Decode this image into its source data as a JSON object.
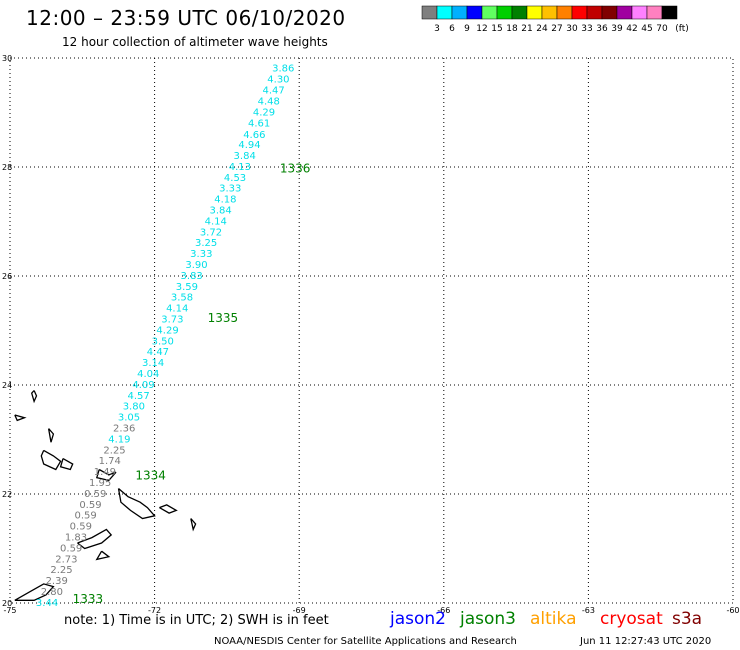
{
  "title": "12:00 – 23:59 UTC 06/10/2020",
  "subtitle": "12 hour collection of altimeter wave heights",
  "colorbar": {
    "labels": [
      "3",
      "6",
      "9",
      "12",
      "15",
      "18",
      "21",
      "24",
      "27",
      "30",
      "33",
      "36",
      "39",
      "42",
      "45",
      "70"
    ],
    "unit": "(ft)",
    "colors": [
      "#7f7f7f",
      "#00ffff",
      "#00b0ff",
      "#0000ff",
      "#60ff60",
      "#00d000",
      "#008000",
      "#ffff00",
      "#ffc000",
      "#ff8000",
      "#ff0000",
      "#c00000",
      "#800000",
      "#a000a0",
      "#ff80ff",
      "#ff80c0",
      "#000000"
    ]
  },
  "axes": {
    "lon_labels": [
      "-75",
      "-72",
      "-69",
      "-66",
      "-63",
      "-60"
    ],
    "lat_labels": [
      "30",
      "28",
      "26",
      "24",
      "22",
      "20"
    ],
    "lon_range": [
      -75,
      -60
    ],
    "lat_range": [
      20,
      30
    ]
  },
  "track": {
    "points": [
      {
        "text": "3.86",
        "lat": 29.83,
        "lon": -69.1,
        "color": "cyan"
      },
      {
        "text": "4.30",
        "lat": 29.62,
        "lon": -69.2,
        "color": "cyan"
      },
      {
        "text": "4.47",
        "lat": 29.42,
        "lon": -69.3,
        "color": "cyan"
      },
      {
        "text": "4.48",
        "lat": 29.22,
        "lon": -69.4,
        "color": "cyan"
      },
      {
        "text": "4.29",
        "lat": 29.02,
        "lon": -69.5,
        "color": "cyan"
      },
      {
        "text": "4.61",
        "lat": 28.82,
        "lon": -69.6,
        "color": "cyan"
      },
      {
        "text": "4.66",
        "lat": 28.61,
        "lon": -69.7,
        "color": "cyan"
      },
      {
        "text": "4.94",
        "lat": 28.42,
        "lon": -69.8,
        "color": "cyan"
      },
      {
        "text": "3.84",
        "lat": 28.22,
        "lon": -69.9,
        "color": "cyan"
      },
      {
        "text": "4.13",
        "lat": 28.02,
        "lon": -70.0,
        "color": "cyan"
      },
      {
        "text": "4.53",
        "lat": 27.82,
        "lon": -70.1,
        "color": "cyan"
      },
      {
        "text": "3.33",
        "lat": 27.62,
        "lon": -70.2,
        "color": "cyan"
      },
      {
        "text": "4.18",
        "lat": 27.42,
        "lon": -70.3,
        "color": "cyan"
      },
      {
        "text": "3.84",
        "lat": 27.22,
        "lon": -70.4,
        "color": "cyan"
      },
      {
        "text": "4.14",
        "lat": 27.02,
        "lon": -70.5,
        "color": "cyan"
      },
      {
        "text": "3.72",
        "lat": 26.82,
        "lon": -70.6,
        "color": "cyan"
      },
      {
        "text": "3.25",
        "lat": 26.62,
        "lon": -70.7,
        "color": "cyan"
      },
      {
        "text": "3.33",
        "lat": 26.42,
        "lon": -70.8,
        "color": "cyan"
      },
      {
        "text": "3.90",
        "lat": 26.22,
        "lon": -70.9,
        "color": "cyan"
      },
      {
        "text": "3.83",
        "lat": 26.02,
        "lon": -71.0,
        "color": "cyan"
      },
      {
        "text": "3.59",
        "lat": 25.82,
        "lon": -71.1,
        "color": "cyan"
      },
      {
        "text": "3.58",
        "lat": 25.62,
        "lon": -71.2,
        "color": "cyan"
      },
      {
        "text": "4.14",
        "lat": 25.42,
        "lon": -71.3,
        "color": "cyan"
      },
      {
        "text": "3.73",
        "lat": 25.22,
        "lon": -71.4,
        "color": "cyan"
      },
      {
        "text": "4.29",
        "lat": 25.02,
        "lon": -71.5,
        "color": "cyan"
      },
      {
        "text": "3.50",
        "lat": 24.82,
        "lon": -71.6,
        "color": "cyan"
      },
      {
        "text": "4.47",
        "lat": 24.62,
        "lon": -71.7,
        "color": "cyan"
      },
      {
        "text": "3.14",
        "lat": 24.42,
        "lon": -71.8,
        "color": "cyan"
      },
      {
        "text": "4.04",
        "lat": 24.22,
        "lon": -71.9,
        "color": "cyan"
      },
      {
        "text": "4.09",
        "lat": 24.02,
        "lon": -72.0,
        "color": "cyan"
      },
      {
        "text": "4.57",
        "lat": 23.82,
        "lon": -72.1,
        "color": "cyan"
      },
      {
        "text": "3.80",
        "lat": 23.62,
        "lon": -72.2,
        "color": "cyan"
      },
      {
        "text": "3.05",
        "lat": 23.42,
        "lon": -72.3,
        "color": "cyan"
      },
      {
        "text": "2.36",
        "lat": 23.22,
        "lon": -72.4,
        "color": "gray"
      },
      {
        "text": "4.19",
        "lat": 23.02,
        "lon": -72.5,
        "color": "cyan"
      },
      {
        "text": "2.25",
        "lat": 22.82,
        "lon": -72.6,
        "color": "gray"
      },
      {
        "text": "1.74",
        "lat": 22.62,
        "lon": -72.7,
        "color": "gray"
      },
      {
        "text": "1.49",
        "lat": 22.42,
        "lon": -72.8,
        "color": "gray"
      },
      {
        "text": "1.95",
        "lat": 22.22,
        "lon": -72.9,
        "color": "gray"
      },
      {
        "text": "0.59",
        "lat": 22.02,
        "lon": -73.0,
        "color": "gray"
      },
      {
        "text": "0.59",
        "lat": 21.82,
        "lon": -73.1,
        "color": "gray"
      },
      {
        "text": "0.59",
        "lat": 21.62,
        "lon": -73.2,
        "color": "gray"
      },
      {
        "text": "0.59",
        "lat": 21.42,
        "lon": -73.3,
        "color": "gray"
      },
      {
        "text": "1.83",
        "lat": 21.22,
        "lon": -73.4,
        "color": "gray"
      },
      {
        "text": "0.59",
        "lat": 21.02,
        "lon": -73.5,
        "color": "gray"
      },
      {
        "text": "2.73",
        "lat": 20.82,
        "lon": -73.6,
        "color": "gray"
      },
      {
        "text": "2.25",
        "lat": 20.62,
        "lon": -73.7,
        "color": "gray"
      },
      {
        "text": "2.39",
        "lat": 20.42,
        "lon": -73.8,
        "color": "gray"
      },
      {
        "text": "2.80",
        "lat": 20.22,
        "lon": -73.9,
        "color": "gray"
      },
      {
        "text": "3.44",
        "lat": 20.02,
        "lon": -74.0,
        "color": "cyan"
      }
    ],
    "orbit_labels": [
      {
        "text": "1336",
        "lat": 27.97,
        "lon": -69.4
      },
      {
        "text": "1335",
        "lat": 25.23,
        "lon": -70.9
      },
      {
        "text": "1334",
        "lat": 22.34,
        "lon": -72.4
      },
      {
        "text": "1333",
        "lat": 20.07,
        "lon": -73.7
      }
    ]
  },
  "footer": {
    "note": "note:  1) Time is in UTC;  2) SWH is in feet",
    "satellites": [
      {
        "name": "jason2",
        "color": "#0000ff"
      },
      {
        "name": "jason3",
        "color": "#008000"
      },
      {
        "name": "altika",
        "color": "#ffa000"
      },
      {
        "name": "cryosat",
        "color": "#ff0000"
      },
      {
        "name": "s3a",
        "color": "#800000"
      }
    ],
    "credit": "NOAA/NESDIS Center for Satellite Applications and Research",
    "timestamp": "Jun 11 12:27:43 UTC 2020"
  }
}
